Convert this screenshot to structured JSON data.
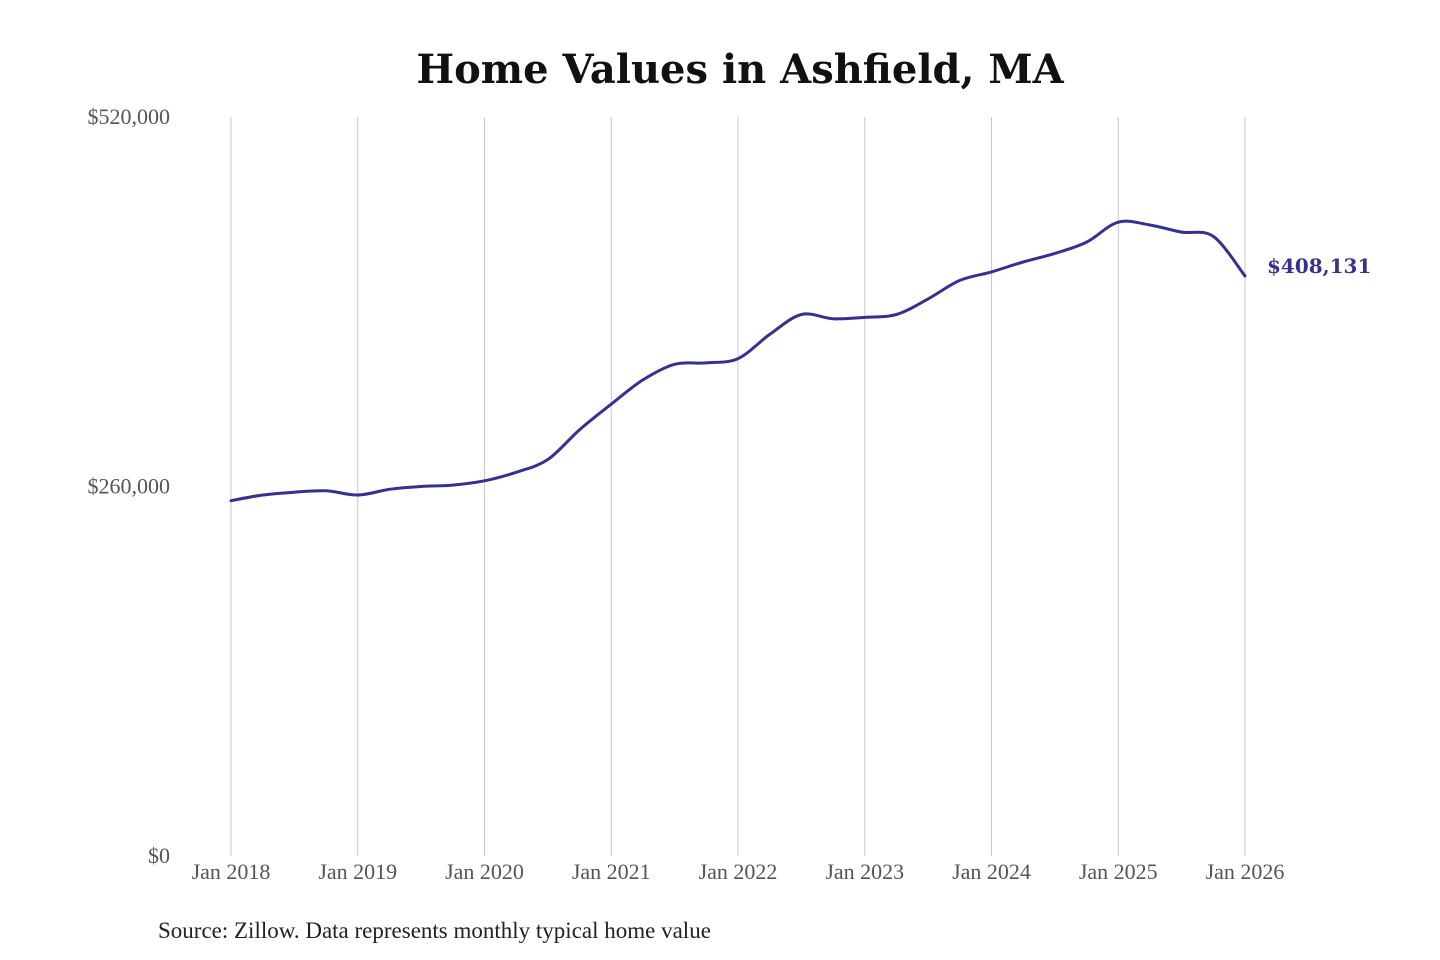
{
  "chart_data": {
    "type": "line",
    "title": "Home Values in Ashfield, MA",
    "source_note": "Source: Zillow. Data represents monthly typical home value",
    "xlabel": "",
    "ylabel": "",
    "ylim": [
      0,
      520000
    ],
    "y_ticks": [
      0,
      260000,
      520000
    ],
    "y_tick_labels": [
      "$0",
      "$260,000",
      "$520,000"
    ],
    "x_ticks": [
      "2018-01",
      "2019-01",
      "2020-01",
      "2021-01",
      "2022-01",
      "2023-01",
      "2024-01",
      "2025-01",
      "2026-01"
    ],
    "x_tick_labels": [
      "Jan 2018",
      "Jan 2019",
      "Jan 2020",
      "Jan 2021",
      "Jan 2022",
      "Jan 2023",
      "Jan 2024",
      "Jan 2025",
      "Jan 2026"
    ],
    "grid": "vertical",
    "line_color": "#35318f",
    "end_label": "$408,131",
    "series": [
      {
        "x": [
          "2018-01",
          "2018-04",
          "2018-07",
          "2018-10",
          "2019-01",
          "2019-04",
          "2019-07",
          "2019-10",
          "2020-01",
          "2020-04",
          "2020-07",
          "2020-10",
          "2021-01",
          "2021-04",
          "2021-07",
          "2021-10",
          "2022-01",
          "2022-04",
          "2022-07",
          "2022-10",
          "2023-01",
          "2023-04",
          "2023-07",
          "2023-10",
          "2024-01",
          "2024-04",
          "2024-07",
          "2024-10",
          "2025-01",
          "2025-04",
          "2025-07",
          "2025-10",
          "2026-01"
        ],
        "values": [
          250000,
          254000,
          256000,
          257000,
          254000,
          258000,
          260000,
          261000,
          264000,
          270000,
          279000,
          300000,
          318000,
          335000,
          346000,
          347000,
          350000,
          367000,
          381000,
          378000,
          379000,
          381000,
          392000,
          405000,
          411000,
          418000,
          424000,
          432000,
          446000,
          444000,
          439000,
          436000,
          408131
        ]
      }
    ]
  }
}
